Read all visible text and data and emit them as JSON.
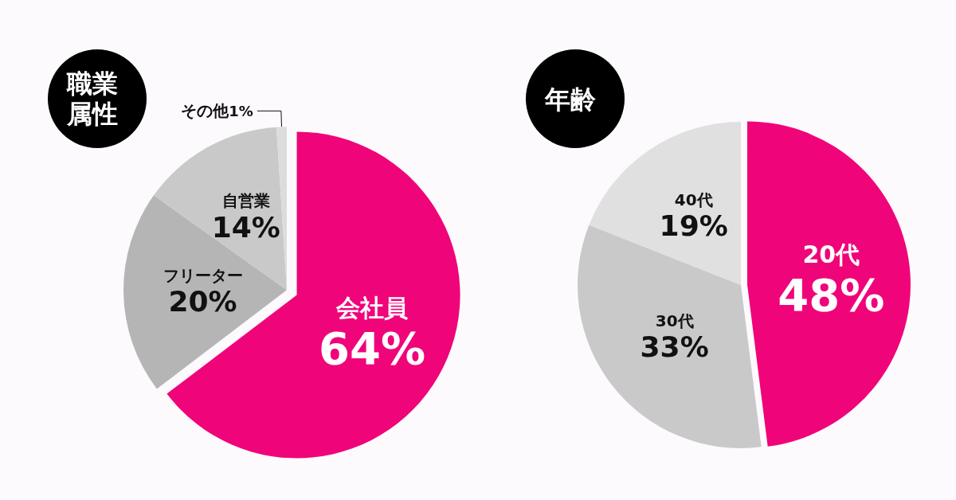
{
  "chart_data": [
    {
      "type": "pie",
      "title": "職業属性",
      "categories": [
        "会社員",
        "フリーター",
        "自営業",
        "その他"
      ],
      "values": [
        64,
        20,
        14,
        1
      ],
      "value_labels": [
        "64%",
        "20%",
        "14%",
        "1%"
      ],
      "colors": [
        "#f0047a",
        "#b5b5b6",
        "#c9c9ca",
        "#dcdcdd"
      ],
      "legend": false
    },
    {
      "type": "pie",
      "title": "年齢",
      "categories": [
        "20代",
        "30代",
        "40代"
      ],
      "values": [
        48,
        33,
        19
      ],
      "value_labels": [
        "48%",
        "33%",
        "19%"
      ],
      "colors": [
        "#f0047a",
        "#c9c9ca",
        "#e0e0e1"
      ],
      "legend": false
    }
  ]
}
